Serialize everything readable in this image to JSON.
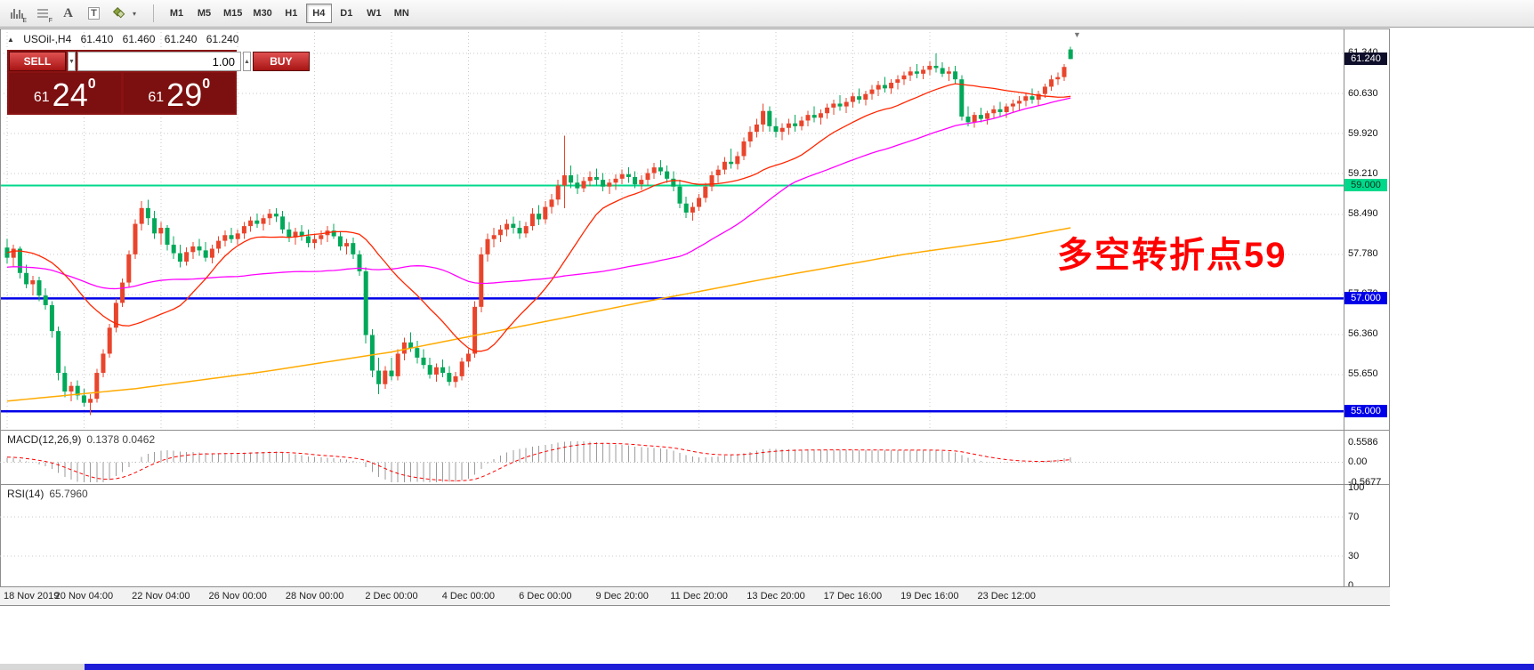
{
  "toolbar": {
    "icon_e_badge": "E",
    "icon_f_badge": "F",
    "font_tool_label": "A",
    "textbox_tool_label": "T",
    "cycles_caret": "▾",
    "timeframes": [
      "M1",
      "M5",
      "M15",
      "M30",
      "H1",
      "H4",
      "D1",
      "W1",
      "MN"
    ],
    "active_timeframe": "H4"
  },
  "icons": {
    "collapse": "▲",
    "caret_down": "▼",
    "caret_up": "▲",
    "marker_down": "▼"
  },
  "chart_header": {
    "symbol": "USOil-,H4",
    "open": "61.410",
    "high": "61.460",
    "low": "61.240",
    "close": "61.240"
  },
  "trade_panel": {
    "sell_label": "SELL",
    "buy_label": "BUY",
    "volume": "1.00",
    "sell_big": "61",
    "sell_main": "24",
    "sell_sup": "0",
    "buy_big": "61",
    "buy_main": "29",
    "buy_sup": "0"
  },
  "annotation": {
    "text": "多空转折点59",
    "color": "#fe0000"
  },
  "colors": {
    "up": "#e8452c",
    "down": "#00a859",
    "ma_fast": "#ff2600",
    "ma_mid": "#ff00ff",
    "ma_slow": "#ffaa00",
    "macd_hist": "#9b9b9b",
    "macd_signal": "#ff0000",
    "rsi": "#3c7dc4",
    "level_green": "#00d98b",
    "level_blue": "#0000e8"
  },
  "price_axis": {
    "ticks": [
      "61.340",
      "60.630",
      "59.920",
      "59.210",
      "58.490",
      "57.780",
      "57.070",
      "56.360",
      "55.650"
    ],
    "current": {
      "value": "61.240",
      "bg": "#0e0e2a"
    },
    "levels": [
      {
        "value": "59.000",
        "bg": "#00d98b",
        "fg": "#00331f"
      },
      {
        "value": "57.000",
        "bg": "#0000e8",
        "fg": "#ffffff"
      },
      {
        "value": "55.000",
        "bg": "#0000e8",
        "fg": "#ffffff"
      }
    ]
  },
  "macd_panel": {
    "label": "MACD(12,26,9)",
    "values": "0.1378 0.0462",
    "ticks": [
      "0.5586",
      "0.00",
      "-0.5677"
    ]
  },
  "rsi_panel": {
    "label": "RSI(14)",
    "value": "65.7960",
    "ticks": [
      "100",
      "70",
      "30",
      "0"
    ]
  },
  "time_axis": {
    "labels": [
      "18 Nov 2019",
      "20 Nov 04:00",
      "22 Nov 04:00",
      "26 Nov 00:00",
      "28 Nov 00:00",
      "2 Dec 00:00",
      "4 Dec 00:00",
      "6 Dec 00:00",
      "9 Dec 20:00",
      "11 Dec 20:00",
      "13 Dec 20:00",
      "17 Dec 16:00",
      "19 Dec 16:00",
      "23 Dec 12:00"
    ]
  },
  "chart_data": {
    "type": "candlestick",
    "symbol": "USOil",
    "timeframe": "H4",
    "ylim": [
      54.7,
      61.78
    ],
    "current_price": 61.24,
    "horizontal_levels": [
      {
        "price": 59.0,
        "color": "green"
      },
      {
        "price": 57.0,
        "color": "blue"
      },
      {
        "price": 55.0,
        "color": "blue"
      }
    ],
    "history_closes": [
      57.2,
      57.4,
      57.3,
      57.5,
      57.6,
      57.4,
      57.2,
      57.0,
      56.8,
      57.0,
      57.2,
      57.1,
      56.9,
      57.1,
      57.3,
      57.5,
      57.4,
      57.6,
      57.8,
      57.7,
      57.5,
      57.3,
      57.4,
      57.6,
      57.8,
      57.9,
      58.0,
      57.8,
      57.6,
      57.7,
      57.9,
      58.1,
      58.0,
      57.8,
      57.7,
      57.9,
      58.0,
      58.1,
      57.95,
      57.9
    ],
    "candles": [
      [
        57.9,
        58.05,
        57.62,
        57.72
      ],
      [
        57.72,
        57.95,
        57.55,
        57.88
      ],
      [
        57.88,
        57.92,
        57.35,
        57.45
      ],
      [
        57.45,
        57.6,
        57.18,
        57.25
      ],
      [
        57.25,
        57.4,
        57.05,
        57.32
      ],
      [
        57.32,
        57.38,
        56.95,
        57.05
      ],
      [
        57.05,
        57.18,
        56.8,
        56.88
      ],
      [
        56.88,
        56.95,
        56.3,
        56.42
      ],
      [
        56.42,
        56.5,
        55.55,
        55.68
      ],
      [
        55.68,
        55.8,
        55.25,
        55.35
      ],
      [
        55.35,
        55.52,
        55.18,
        55.45
      ],
      [
        55.45,
        55.55,
        55.2,
        55.28
      ],
      [
        55.28,
        55.4,
        55.08,
        55.15
      ],
      [
        55.15,
        55.3,
        54.93,
        55.22
      ],
      [
        55.22,
        55.75,
        55.15,
        55.68
      ],
      [
        55.68,
        56.1,
        55.6,
        56.02
      ],
      [
        56.02,
        56.55,
        55.95,
        56.48
      ],
      [
        56.48,
        57.0,
        56.4,
        56.92
      ],
      [
        56.92,
        57.35,
        56.85,
        57.28
      ],
      [
        57.28,
        57.85,
        57.2,
        57.78
      ],
      [
        57.78,
        58.4,
        57.7,
        58.32
      ],
      [
        58.32,
        58.72,
        58.2,
        58.6
      ],
      [
        58.6,
        58.75,
        58.3,
        58.42
      ],
      [
        58.42,
        58.55,
        58.05,
        58.15
      ],
      [
        58.15,
        58.35,
        57.95,
        58.25
      ],
      [
        58.25,
        58.3,
        57.85,
        57.95
      ],
      [
        57.95,
        58.1,
        57.7,
        57.8
      ],
      [
        57.8,
        57.95,
        57.55,
        57.65
      ],
      [
        57.65,
        57.9,
        57.58,
        57.82
      ],
      [
        57.82,
        58.0,
        57.7,
        57.92
      ],
      [
        57.92,
        58.05,
        57.75,
        57.85
      ],
      [
        57.85,
        58.0,
        57.65,
        57.72
      ],
      [
        57.72,
        57.95,
        57.62,
        57.88
      ],
      [
        57.88,
        58.1,
        57.8,
        58.02
      ],
      [
        58.02,
        58.2,
        57.92,
        58.12
      ],
      [
        58.12,
        58.25,
        57.98,
        58.05
      ],
      [
        58.05,
        58.22,
        57.95,
        58.15
      ],
      [
        58.15,
        58.35,
        58.05,
        58.28
      ],
      [
        58.28,
        58.45,
        58.18,
        58.38
      ],
      [
        58.38,
        58.5,
        58.25,
        58.32
      ],
      [
        58.32,
        58.48,
        58.2,
        58.42
      ],
      [
        58.42,
        58.58,
        58.3,
        58.5
      ],
      [
        58.5,
        58.6,
        58.35,
        58.45
      ],
      [
        58.45,
        58.55,
        58.15,
        58.22
      ],
      [
        58.22,
        58.35,
        58.0,
        58.08
      ],
      [
        58.08,
        58.25,
        57.95,
        58.18
      ],
      [
        58.18,
        58.3,
        58.02,
        58.1
      ],
      [
        58.1,
        58.22,
        57.9,
        57.98
      ],
      [
        57.98,
        58.15,
        57.88,
        58.05
      ],
      [
        58.05,
        58.2,
        57.95,
        58.12
      ],
      [
        58.12,
        58.28,
        58.0,
        58.2
      ],
      [
        58.2,
        58.32,
        58.05,
        58.1
      ],
      [
        58.1,
        58.18,
        57.85,
        57.92
      ],
      [
        57.92,
        58.05,
        57.78,
        57.98
      ],
      [
        57.98,
        58.08,
        57.7,
        57.78
      ],
      [
        57.78,
        57.85,
        57.4,
        57.48
      ],
      [
        57.48,
        57.55,
        56.2,
        56.35
      ],
      [
        56.35,
        56.45,
        55.6,
        55.72
      ],
      [
        55.72,
        55.95,
        55.3,
        55.48
      ],
      [
        55.48,
        55.8,
        55.4,
        55.72
      ],
      [
        55.72,
        55.95,
        55.55,
        55.62
      ],
      [
        55.62,
        56.1,
        55.55,
        56.02
      ],
      [
        56.02,
        56.3,
        55.9,
        56.22
      ],
      [
        56.22,
        56.4,
        56.05,
        56.12
      ],
      [
        56.12,
        56.25,
        55.85,
        55.95
      ],
      [
        55.95,
        56.1,
        55.75,
        55.82
      ],
      [
        55.82,
        55.95,
        55.58,
        55.65
      ],
      [
        55.65,
        55.85,
        55.52,
        55.78
      ],
      [
        55.78,
        55.92,
        55.6,
        55.68
      ],
      [
        55.68,
        55.8,
        55.45,
        55.52
      ],
      [
        55.52,
        55.7,
        55.42,
        55.62
      ],
      [
        55.62,
        55.95,
        55.55,
        55.88
      ],
      [
        55.88,
        56.1,
        55.78,
        56.02
      ],
      [
        56.02,
        56.95,
        55.95,
        56.85
      ],
      [
        56.85,
        57.9,
        56.75,
        57.78
      ],
      [
        57.78,
        58.15,
        57.65,
        58.05
      ],
      [
        58.05,
        58.25,
        57.9,
        58.12
      ],
      [
        58.12,
        58.3,
        58.0,
        58.22
      ],
      [
        58.22,
        58.4,
        58.1,
        58.32
      ],
      [
        58.32,
        58.45,
        58.15,
        58.25
      ],
      [
        58.25,
        58.38,
        58.05,
        58.15
      ],
      [
        58.15,
        58.35,
        58.08,
        58.28
      ],
      [
        58.28,
        58.6,
        58.2,
        58.5
      ],
      [
        58.5,
        58.65,
        58.3,
        58.4
      ],
      [
        58.4,
        58.72,
        58.32,
        58.62
      ],
      [
        58.62,
        58.85,
        58.5,
        58.75
      ],
      [
        58.75,
        59.1,
        58.65,
        59.0
      ],
      [
        59.0,
        59.88,
        58.6,
        59.18
      ],
      [
        59.18,
        59.35,
        58.95,
        59.05
      ],
      [
        59.05,
        59.2,
        58.85,
        58.95
      ],
      [
        58.95,
        59.15,
        58.88,
        59.08
      ],
      [
        59.08,
        59.25,
        58.98,
        59.15
      ],
      [
        59.15,
        59.3,
        59.0,
        59.1
      ],
      [
        59.1,
        59.22,
        58.9,
        58.98
      ],
      [
        58.98,
        59.12,
        58.85,
        59.05
      ],
      [
        59.05,
        59.2,
        58.92,
        59.12
      ],
      [
        59.12,
        59.28,
        59.02,
        59.2
      ],
      [
        59.2,
        59.32,
        59.05,
        59.15
      ],
      [
        59.15,
        59.25,
        58.95,
        59.02
      ],
      [
        59.02,
        59.18,
        58.92,
        59.1
      ],
      [
        59.1,
        59.3,
        59.0,
        59.22
      ],
      [
        59.22,
        59.4,
        59.12,
        59.32
      ],
      [
        59.32,
        59.45,
        59.18,
        59.25
      ],
      [
        59.25,
        59.35,
        59.05,
        59.12
      ],
      [
        59.12,
        59.25,
        58.9,
        58.98
      ],
      [
        58.98,
        59.1,
        58.6,
        58.68
      ],
      [
        58.68,
        58.8,
        58.42,
        58.52
      ],
      [
        58.52,
        58.7,
        58.38,
        58.62
      ],
      [
        58.62,
        58.85,
        58.55,
        58.78
      ],
      [
        58.78,
        59.05,
        58.7,
        58.98
      ],
      [
        58.98,
        59.25,
        58.9,
        59.18
      ],
      [
        59.18,
        59.35,
        59.05,
        59.28
      ],
      [
        59.28,
        59.5,
        59.2,
        59.42
      ],
      [
        59.42,
        59.65,
        59.3,
        59.38
      ],
      [
        59.38,
        59.6,
        59.28,
        59.52
      ],
      [
        59.52,
        59.85,
        59.45,
        59.78
      ],
      [
        59.78,
        60.05,
        59.68,
        59.95
      ],
      [
        59.95,
        60.18,
        59.85,
        60.08
      ],
      [
        60.08,
        60.45,
        59.95,
        60.32
      ],
      [
        60.32,
        60.4,
        59.95,
        60.05
      ],
      [
        60.05,
        60.2,
        59.85,
        59.95
      ],
      [
        59.95,
        60.1,
        59.8,
        60.02
      ],
      [
        60.02,
        60.18,
        59.9,
        60.1
      ],
      [
        60.1,
        60.25,
        59.95,
        60.05
      ],
      [
        60.05,
        60.22,
        59.98,
        60.15
      ],
      [
        60.15,
        60.32,
        60.05,
        60.25
      ],
      [
        60.25,
        60.4,
        60.12,
        60.2
      ],
      [
        60.2,
        60.35,
        60.08,
        60.28
      ],
      [
        60.28,
        60.45,
        60.18,
        60.38
      ],
      [
        60.38,
        60.52,
        60.25,
        60.45
      ],
      [
        60.45,
        60.6,
        60.32,
        60.4
      ],
      [
        60.4,
        60.55,
        60.28,
        60.48
      ],
      [
        60.48,
        60.65,
        60.38,
        60.58
      ],
      [
        60.58,
        60.72,
        60.45,
        60.52
      ],
      [
        60.52,
        60.68,
        60.42,
        60.62
      ],
      [
        60.62,
        60.78,
        60.52,
        60.7
      ],
      [
        60.7,
        60.85,
        60.58,
        60.78
      ],
      [
        60.78,
        60.92,
        60.65,
        60.72
      ],
      [
        60.72,
        60.88,
        60.62,
        60.82
      ],
      [
        60.82,
        60.95,
        60.7,
        60.88
      ],
      [
        60.88,
        61.02,
        60.78,
        60.95
      ],
      [
        60.95,
        61.1,
        60.85,
        61.02
      ],
      [
        61.02,
        61.15,
        60.9,
        60.98
      ],
      [
        60.98,
        61.12,
        60.88,
        61.05
      ],
      [
        61.05,
        61.2,
        60.95,
        61.12
      ],
      [
        61.12,
        61.34,
        61.0,
        61.08
      ],
      [
        61.08,
        61.18,
        60.92,
        60.98
      ],
      [
        60.98,
        61.1,
        60.85,
        61.02
      ],
      [
        61.02,
        61.12,
        60.8,
        60.88
      ],
      [
        60.88,
        60.95,
        60.15,
        60.22
      ],
      [
        60.22,
        60.4,
        60.05,
        60.12
      ],
      [
        60.12,
        60.3,
        60.02,
        60.25
      ],
      [
        60.25,
        60.38,
        60.12,
        60.18
      ],
      [
        60.18,
        60.32,
        60.08,
        60.28
      ],
      [
        60.28,
        60.42,
        60.18,
        60.35
      ],
      [
        60.35,
        60.48,
        60.22,
        60.3
      ],
      [
        60.3,
        60.45,
        60.2,
        60.4
      ],
      [
        60.4,
        60.52,
        60.28,
        60.45
      ],
      [
        60.45,
        60.58,
        60.32,
        60.5
      ],
      [
        60.5,
        60.65,
        60.4,
        60.58
      ],
      [
        60.58,
        60.72,
        60.45,
        60.52
      ],
      [
        60.52,
        60.68,
        60.42,
        60.62
      ],
      [
        60.62,
        60.8,
        60.55,
        60.75
      ],
      [
        60.75,
        60.95,
        60.68,
        60.88
      ],
      [
        60.88,
        61.0,
        60.78,
        60.92
      ],
      [
        60.92,
        61.15,
        60.85,
        61.1
      ],
      [
        61.41,
        61.46,
        61.24,
        61.24
      ]
    ],
    "overlays": {
      "sma_fast_period": 20,
      "sma_mid_period": 50,
      "ma_slow": {
        "waypoints": [
          [
            0,
            55.18
          ],
          [
            20,
            55.4
          ],
          [
            40,
            55.7
          ],
          [
            60,
            56.05
          ],
          [
            80,
            56.5
          ],
          [
            100,
            56.95
          ],
          [
            120,
            57.38
          ],
          [
            140,
            57.78
          ],
          [
            155,
            58.02
          ],
          [
            166,
            58.25
          ]
        ]
      }
    },
    "indicators": {
      "macd": {
        "fast": 12,
        "slow": 26,
        "signal": 9,
        "current": "0.1378 0.0462"
      },
      "rsi": {
        "period": 14,
        "current": 65.796,
        "levels": [
          70,
          30
        ]
      }
    }
  }
}
